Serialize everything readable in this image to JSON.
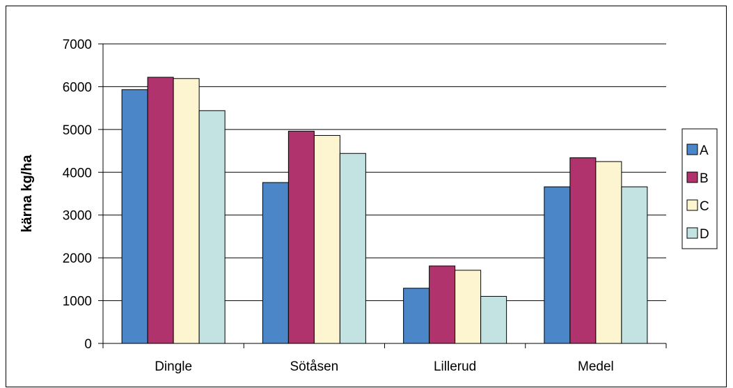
{
  "chart_data": {
    "type": "bar",
    "title": "",
    "xlabel": "",
    "ylabel": "kärna kg/ha",
    "ylim": [
      0,
      7000
    ],
    "yticks": [
      0,
      1000,
      2000,
      3000,
      4000,
      5000,
      6000,
      7000
    ],
    "ytick_labels": [
      "0",
      "1000",
      "2000",
      "3000",
      "4000",
      "5000",
      "6000",
      "7000"
    ],
    "categories": [
      "Dingle",
      "Sötåsen",
      "Lillerud",
      "Medel"
    ],
    "grid": "horizontal major gridlines",
    "legend_position": "right",
    "series": [
      {
        "name": "A",
        "color": "#4a86c8",
        "values": [
          5930,
          3760,
          1290,
          3660
        ]
      },
      {
        "name": "B",
        "color": "#b0336e",
        "values": [
          6220,
          4960,
          1810,
          4340
        ]
      },
      {
        "name": "C",
        "color": "#fdf5cf",
        "values": [
          6190,
          4860,
          1710,
          4250
        ]
      },
      {
        "name": "D",
        "color": "#c3e3e3",
        "values": [
          5440,
          4440,
          1100,
          3660
        ]
      }
    ]
  }
}
